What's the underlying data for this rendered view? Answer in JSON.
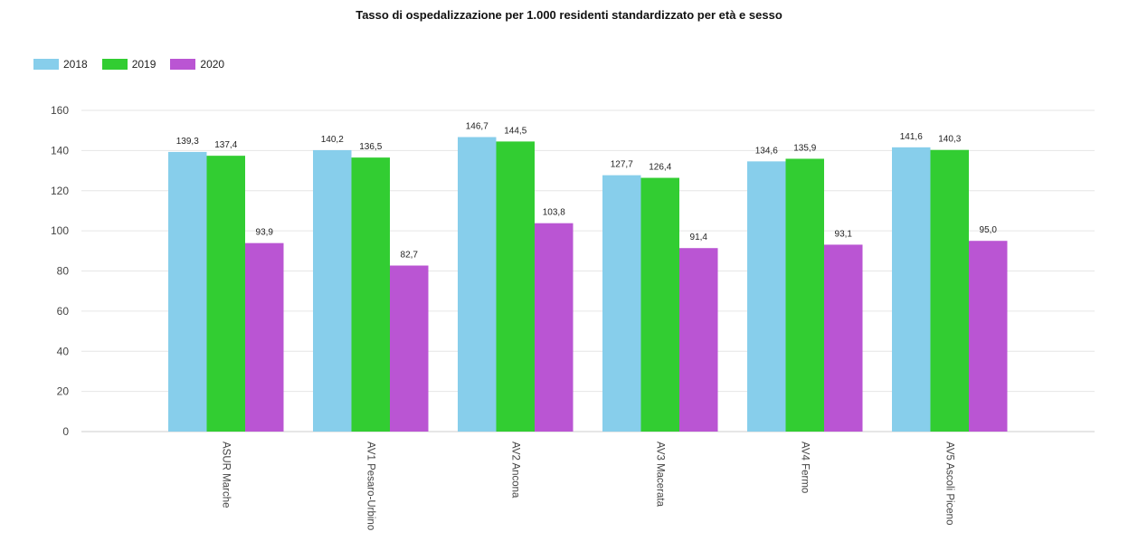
{
  "chart_data": {
    "type": "bar",
    "title": "Tasso di ospedalizzazione per 1.000 residenti standardizzato per età e sesso",
    "categories": [
      "ASUR Marche",
      "AV1 Pesaro-Urbino",
      "AV2 Ancona",
      "AV3 Macerata",
      "AV4 Fermo",
      "AV5 Ascoli Piceno"
    ],
    "series": [
      {
        "name": "2018",
        "color": "#87CEEB",
        "values": [
          139.3,
          140.2,
          146.7,
          127.7,
          134.6,
          141.6
        ],
        "labels": [
          "139,3",
          "140,2",
          "146,7",
          "127,7",
          "134,6",
          "141,6"
        ]
      },
      {
        "name": "2019",
        "color": "#32CD32",
        "values": [
          137.4,
          136.5,
          144.5,
          126.4,
          135.9,
          140.3
        ],
        "labels": [
          "137,4",
          "136,5",
          "144,5",
          "126,4",
          "135,9",
          "140,3"
        ]
      },
      {
        "name": "2020",
        "color": "#BA55D3",
        "values": [
          93.9,
          82.7,
          103.8,
          91.4,
          93.1,
          95.0
        ],
        "labels": [
          "93,9",
          "82,7",
          "103,8",
          "91,4",
          "93,1",
          "95,0"
        ]
      }
    ],
    "ylim": [
      0,
      160
    ],
    "yticks": [
      0,
      20,
      40,
      60,
      80,
      100,
      120,
      140,
      160
    ],
    "xlabel": "",
    "ylabel": "",
    "grid": true,
    "legend_position": "top-left"
  }
}
